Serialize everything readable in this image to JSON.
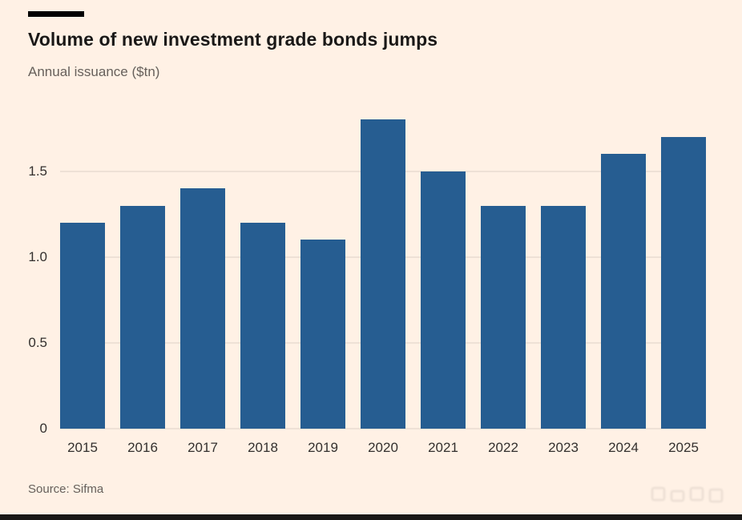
{
  "header": {
    "title": "Volume of new investment grade bonds jumps",
    "subtitle": "Annual issuance ($tn)"
  },
  "footer": {
    "source": "Source: Sifma"
  },
  "colors": {
    "background": "#fff1e5",
    "bar": "#265d91",
    "title": "#1a1817",
    "muted": "#66605b"
  },
  "chart_data": {
    "type": "bar",
    "title": "Volume of new investment grade bonds jumps",
    "ylabel": "Annual issuance ($tn)",
    "xlabel": "",
    "categories": [
      "2015",
      "2016",
      "2017",
      "2018",
      "2019",
      "2020",
      "2021",
      "2022",
      "2023",
      "2024",
      "2025"
    ],
    "values": [
      1.2,
      1.3,
      1.4,
      1.2,
      1.1,
      1.8,
      1.5,
      1.3,
      1.3,
      1.6,
      1.7
    ],
    "ylim": [
      0,
      1.9
    ],
    "yticks": [
      0,
      0.5,
      1.0,
      1.5
    ],
    "ytick_labels": [
      "0",
      "0.5",
      "1.0",
      "1.5"
    ],
    "grid": true,
    "legend": false,
    "source": "Sifma"
  }
}
